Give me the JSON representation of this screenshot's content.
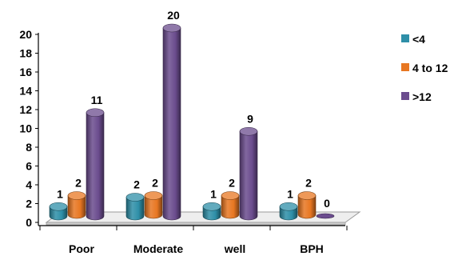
{
  "chart_data": {
    "type": "bar",
    "style": "3d-cylinder",
    "categories": [
      "Poor",
      "Moderate",
      "well",
      "BPH"
    ],
    "series": [
      {
        "name": "<4",
        "values": [
          1,
          2,
          1,
          1
        ],
        "color": "#2E8FA8"
      },
      {
        "name": "4 to 12",
        "values": [
          2,
          2,
          2,
          2
        ],
        "color": "#E87722"
      },
      {
        "name": ">12",
        "values": [
          11,
          20,
          9,
          0
        ],
        "color": "#6B4C8E"
      }
    ],
    "y_ticks": [
      "0",
      "2",
      "4",
      "6",
      "8",
      "10",
      "12",
      "14",
      "16",
      "18",
      "20"
    ],
    "ylim": [
      0,
      20
    ],
    "data_labels": true,
    "legend_position": "right",
    "grid": false
  }
}
